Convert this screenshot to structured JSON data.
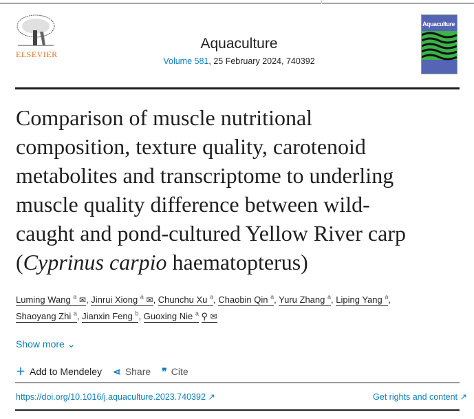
{
  "publisher": {
    "logo_text": "ELSEVIER"
  },
  "journal": {
    "name": "Aquaculture",
    "volume_link": "Volume 581",
    "volume_rest": ", 25 February 2024, 740392",
    "cover_title": "Aquaculture"
  },
  "article": {
    "title_lines": [
      "Comparison of muscle nutritional",
      "composition, texture quality, carotenoid",
      "metabolites and transcriptome to underling",
      "muscle quality difference between wild-",
      "caught and pond-cultured Yellow River carp"
    ],
    "title_paren_open": "(",
    "title_italic": "Cyprinus carpio",
    "title_end": " haematopterus)"
  },
  "authors": [
    {
      "name": "Luming Wang",
      "aff": "a",
      "email": true
    },
    {
      "name": "Jinrui Xiong",
      "aff": "a",
      "email": true
    },
    {
      "name": "Chunchu Xu",
      "aff": "a"
    },
    {
      "name": "Chaobin Qin",
      "aff": "a"
    },
    {
      "name": "Yuru Zhang",
      "aff": "a"
    },
    {
      "name": "Liping Yang",
      "aff": "a"
    },
    {
      "name": "Shaoyang Zhi",
      "aff": "a"
    },
    {
      "name": "Jianxin Feng",
      "aff": "b"
    },
    {
      "name": "Guoxing Nie",
      "aff": "a",
      "corresponding": true,
      "email": true
    }
  ],
  "show_more": "Show more",
  "actions": {
    "mendeley": "Add to Mendeley",
    "share": "Share",
    "cite": "Cite"
  },
  "doi": "https://doi.org/10.1016/j.aquaculture.2023.740392",
  "rights": "Get rights and content",
  "colors": {
    "link": "#0c7dbb",
    "elsevier": "#e9711c"
  }
}
